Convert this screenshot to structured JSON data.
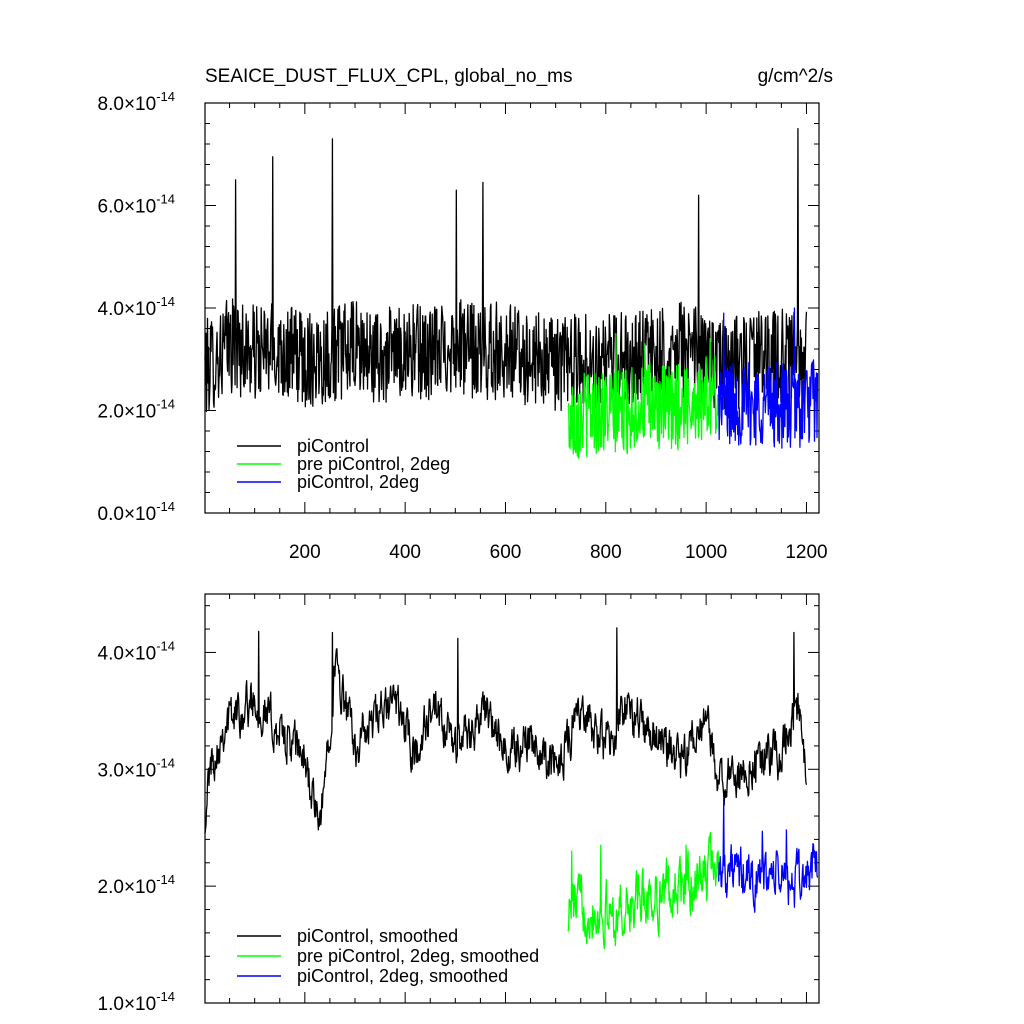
{
  "chart_data": [
    {
      "type": "line",
      "title": "SEAICE_DUST_FLUX_CPL, global_no_ms",
      "units": "g/cm^2/s",
      "xlim": [
        1,
        1225
      ],
      "ylim": [
        0.0,
        8e-14
      ],
      "x_ticks": [
        {
          "value": 200,
          "label": "200"
        },
        {
          "value": 400,
          "label": "400"
        },
        {
          "value": 600,
          "label": "600"
        },
        {
          "value": 800,
          "label": "800"
        },
        {
          "value": 1000,
          "label": "1000"
        },
        {
          "value": 1200,
          "label": "1200"
        }
      ],
      "y_ticks": [
        {
          "value": 0.0,
          "mantissa": "0.0",
          "exponent": "-14"
        },
        {
          "value": 2e-14,
          "mantissa": "2.0",
          "exponent": "-14"
        },
        {
          "value": 4e-14,
          "mantissa": "4.0",
          "exponent": "-14"
        },
        {
          "value": 6e-14,
          "mantissa": "6.0",
          "exponent": "-14"
        },
        {
          "value": 8e-14,
          "mantissa": "8.0",
          "exponent": "-14"
        }
      ],
      "grid": false,
      "legend_position": "bottom-left",
      "series": [
        {
          "name": "piControl",
          "color": "#000000",
          "x_start": 1,
          "x_end": 1200,
          "anchors_x": [
            1,
            50,
            100,
            150,
            200,
            250,
            300,
            350,
            400,
            450,
            500,
            550,
            600,
            650,
            700,
            750,
            800,
            850,
            900,
            950,
            1000,
            1050,
            1100,
            1150,
            1200
          ],
          "anchors_y": [
            2.8e-14,
            3.3e-14,
            3.1e-14,
            3.2e-14,
            3e-14,
            3.1e-14,
            3.2e-14,
            3e-14,
            3.2e-14,
            3.1e-14,
            3.3e-14,
            3.1e-14,
            3.2e-14,
            3e-14,
            2.9e-14,
            3e-14,
            2.9e-14,
            3.1e-14,
            3e-14,
            3.2e-14,
            3e-14,
            2.9e-14,
            3e-14,
            3.1e-14,
            3e-14
          ],
          "peaks": [
            [
              62,
              6.5e-14
            ],
            [
              136,
              6.95e-14
            ],
            [
              255,
              7.3e-14
            ],
            [
              502,
              6.3e-14
            ],
            [
              555,
              6.45e-14
            ],
            [
              985,
              6.2e-14
            ],
            [
              1183,
              7.5e-14
            ]
          ],
          "noise_amp": 9.5e-15,
          "y_min": 1.9e-14
        },
        {
          "name": "pre piControl, 2deg",
          "color": "#00ff00",
          "x_start": 725,
          "x_end": 1025,
          "anchors_x": [
            725,
            775,
            825,
            875,
            925,
            975,
            1025
          ],
          "anchors_y": [
            1.8e-14,
            2e-14,
            1.95e-14,
            2.1e-14,
            2e-14,
            2.2e-14,
            2.3e-14
          ],
          "peaks": [
            [
              820,
              3.5e-14
            ],
            [
              878,
              3.3e-14
            ],
            [
              1008,
              3.4e-14
            ]
          ],
          "noise_amp": 8.5e-15,
          "y_min": 9e-15
        },
        {
          "name": "piControl, 2deg",
          "color": "#0000ff",
          "x_start": 1025,
          "x_end": 1222,
          "anchors_x": [
            1025,
            1075,
            1125,
            1175,
            1222
          ],
          "anchors_y": [
            2.2e-14,
            2.1e-14,
            2.15e-14,
            2.05e-14,
            2.2e-14
          ],
          "peaks": [
            [
              1035,
              3.9e-14
            ],
            [
              1176,
              4e-14
            ]
          ],
          "noise_amp": 8.5e-15,
          "y_min": 1.2e-14
        }
      ]
    },
    {
      "type": "line",
      "title": "",
      "xlim": [
        1,
        1225
      ],
      "ylim": [
        1e-14,
        4.5e-14
      ],
      "x_ticks": [
        {
          "value": 200,
          "label": ""
        },
        {
          "value": 400,
          "label": ""
        },
        {
          "value": 600,
          "label": ""
        },
        {
          "value": 800,
          "label": ""
        },
        {
          "value": 1000,
          "label": ""
        },
        {
          "value": 1200,
          "label": ""
        }
      ],
      "y_ticks": [
        {
          "value": 1e-14,
          "mantissa": "1.0",
          "exponent": "-14"
        },
        {
          "value": 2e-14,
          "mantissa": "2.0",
          "exponent": "-14"
        },
        {
          "value": 3e-14,
          "mantissa": "3.0",
          "exponent": "-14"
        },
        {
          "value": 4e-14,
          "mantissa": "4.0",
          "exponent": "-14"
        }
      ],
      "grid": false,
      "legend_position": "bottom-left",
      "series": [
        {
          "name": "piControl, smoothed",
          "color": "#000000",
          "x_start": 1,
          "x_end": 1200,
          "anchors_x": [
            1,
            10,
            40,
            70,
            100,
            150,
            200,
            230,
            260,
            300,
            340,
            380,
            420,
            450,
            500,
            560,
            600,
            650,
            700,
            745,
            800,
            840,
            900,
            950,
            1000,
            1025,
            1050,
            1100,
            1150,
            1180,
            1200
          ],
          "anchors_y": [
            2.6e-14,
            3e-14,
            3.4e-14,
            3.5e-14,
            3.6e-14,
            3.3e-14,
            3.1e-14,
            2.45e-14,
            3.9e-14,
            3.2e-14,
            3.4e-14,
            3.6e-14,
            3.1e-14,
            3.5e-14,
            3.2e-14,
            3.5e-14,
            3.1e-14,
            3.3e-14,
            3e-14,
            3.5e-14,
            3.2e-14,
            3.5e-14,
            3.3e-14,
            3e-14,
            3.4e-14,
            2.9e-14,
            2.9e-14,
            3.1e-14,
            3.1e-14,
            3.6e-14,
            2.9e-14
          ],
          "peaks": [
            [
              108,
              4.18e-14
            ],
            [
              255,
              4.17e-14
            ],
            [
              505,
              4.12e-14
            ],
            [
              822,
              4.21e-14
            ],
            [
              1175,
              4.17e-14
            ]
          ],
          "noise_amp": 3.5e-15,
          "y_min": 2.45e-14
        },
        {
          "name": "pre piControl, 2deg, smoothed",
          "color": "#00ff00",
          "x_start": 725,
          "x_end": 1025,
          "anchors_x": [
            725,
            760,
            800,
            840,
            880,
            920,
            960,
            1000,
            1025
          ],
          "anchors_y": [
            1.8e-14,
            1.85e-14,
            1.75e-14,
            1.8e-14,
            1.9e-14,
            1.95e-14,
            2e-14,
            2.1e-14,
            2.2e-14
          ],
          "peaks": [
            [
              732,
              2.3e-14
            ],
            [
              790,
              2.35e-14
            ],
            [
              960,
              2.35e-14
            ]
          ],
          "noise_amp": 4.5e-15,
          "y_min": 1.45e-14
        },
        {
          "name": "piControl, 2deg, smoothed",
          "color": "#0000ff",
          "x_start": 1025,
          "x_end": 1222,
          "anchors_x": [
            1025,
            1060,
            1100,
            1140,
            1180,
            1222
          ],
          "anchors_y": [
            2.2e-14,
            2.1e-14,
            2.05e-14,
            2.1e-14,
            2e-14,
            2.2e-14
          ],
          "peaks": [
            [
              1035,
              2.75e-14
            ],
            [
              1112,
              2.47e-14
            ],
            [
              1160,
              2.48e-14
            ]
          ],
          "noise_amp": 4e-15,
          "y_min": 1.52e-14
        }
      ]
    }
  ]
}
